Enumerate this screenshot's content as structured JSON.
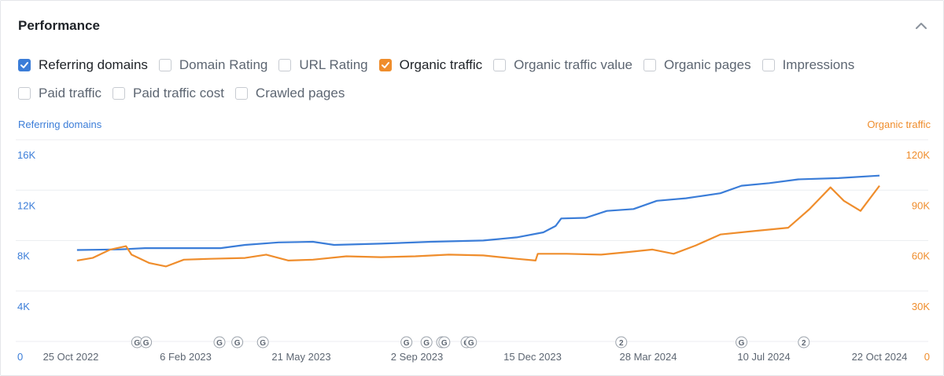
{
  "panel": {
    "title": "Performance",
    "collapse_icon": "chevron-up-icon"
  },
  "metrics": [
    {
      "label": "Referring domains",
      "checked": true,
      "color": "#3b7dd8"
    },
    {
      "label": "Domain Rating",
      "checked": false
    },
    {
      "label": "URL Rating",
      "checked": false
    },
    {
      "label": "Organic traffic",
      "checked": true,
      "color": "#ef8d2c"
    },
    {
      "label": "Organic traffic value",
      "checked": false
    },
    {
      "label": "Organic pages",
      "checked": false
    },
    {
      "label": "Impressions",
      "checked": false
    },
    {
      "label": "Paid traffic",
      "checked": false
    },
    {
      "label": "Paid traffic cost",
      "checked": false
    },
    {
      "label": "Crawled pages",
      "checked": false
    }
  ],
  "chart_data": {
    "type": "line",
    "left_axis": {
      "title": "Referring domains",
      "ticks": [
        "0",
        "4K",
        "8K",
        "12K",
        "16K"
      ],
      "range": [
        0,
        16000
      ]
    },
    "right_axis": {
      "title": "Organic traffic",
      "ticks": [
        "0",
        "30K",
        "60K",
        "90K",
        "120K"
      ],
      "range": [
        0,
        120000
      ]
    },
    "x_range": [
      "2022-10-25",
      "2024-10-22"
    ],
    "x_ticks": [
      "25 Oct 2022",
      "6 Feb 2023",
      "21 May 2023",
      "2 Sep 2023",
      "15 Dec 2023",
      "28 Mar 2024",
      "10 Jul 2024",
      "22 Oct 2024"
    ],
    "grid": true,
    "series": [
      {
        "name": "Referring domains",
        "axis": "left",
        "color": "#3b7dd8",
        "points": [
          [
            "2022-11-01",
            8500
          ],
          [
            "2022-12-10",
            8550
          ],
          [
            "2023-01-01",
            8650
          ],
          [
            "2023-02-01",
            8650
          ],
          [
            "2023-03-10",
            8650
          ],
          [
            "2023-04-01",
            8900
          ],
          [
            "2023-05-01",
            9100
          ],
          [
            "2023-06-01",
            9150
          ],
          [
            "2023-06-20",
            8900
          ],
          [
            "2023-08-01",
            9000
          ],
          [
            "2023-09-15",
            9150
          ],
          [
            "2023-11-01",
            9250
          ],
          [
            "2023-12-01",
            9500
          ],
          [
            "2023-12-25",
            9900
          ],
          [
            "2024-01-05",
            10400
          ],
          [
            "2024-01-10",
            11000
          ],
          [
            "2024-02-01",
            11050
          ],
          [
            "2024-02-20",
            11600
          ],
          [
            "2024-03-15",
            11750
          ],
          [
            "2024-04-05",
            12400
          ],
          [
            "2024-05-01",
            12600
          ],
          [
            "2024-06-01",
            13000
          ],
          [
            "2024-06-20",
            13600
          ],
          [
            "2024-07-15",
            13800
          ],
          [
            "2024-08-10",
            14100
          ],
          [
            "2024-09-15",
            14200
          ],
          [
            "2024-10-22",
            14400
          ]
        ]
      },
      {
        "name": "Organic traffic",
        "axis": "right",
        "color": "#ef8d2c",
        "points": [
          [
            "2022-11-01",
            57500
          ],
          [
            "2022-11-15",
            59000
          ],
          [
            "2022-12-01",
            64000
          ],
          [
            "2022-12-15",
            66000
          ],
          [
            "2022-12-20",
            61000
          ],
          [
            "2023-01-05",
            56000
          ],
          [
            "2023-01-20",
            54000
          ],
          [
            "2023-02-05",
            58000
          ],
          [
            "2023-03-01",
            58500
          ],
          [
            "2023-04-01",
            59000
          ],
          [
            "2023-04-20",
            61000
          ],
          [
            "2023-05-10",
            57500
          ],
          [
            "2023-06-01",
            58000
          ],
          [
            "2023-07-01",
            60000
          ],
          [
            "2023-08-01",
            59500
          ],
          [
            "2023-09-01",
            60000
          ],
          [
            "2023-10-01",
            61000
          ],
          [
            "2023-11-01",
            60500
          ],
          [
            "2023-12-01",
            58500
          ],
          [
            "2023-12-18",
            57500
          ],
          [
            "2023-12-20",
            61500
          ],
          [
            "2024-01-15",
            61500
          ],
          [
            "2024-02-15",
            61000
          ],
          [
            "2024-03-10",
            62500
          ],
          [
            "2024-04-01",
            64000
          ],
          [
            "2024-04-20",
            61500
          ],
          [
            "2024-05-10",
            66500
          ],
          [
            "2024-06-01",
            73000
          ],
          [
            "2024-07-01",
            75000
          ],
          [
            "2024-08-01",
            77000
          ],
          [
            "2024-08-20",
            88000
          ],
          [
            "2024-09-08",
            101000
          ],
          [
            "2024-09-20",
            93000
          ],
          [
            "2024-10-05",
            87000
          ],
          [
            "2024-10-22",
            102000
          ]
        ]
      }
    ],
    "annotations": [
      {
        "date": "2022-12-25",
        "label": "G"
      },
      {
        "date": "2023-01-02",
        "label": "G"
      },
      {
        "date": "2023-03-09",
        "label": "G"
      },
      {
        "date": "2023-03-25",
        "label": "G"
      },
      {
        "date": "2023-04-17",
        "label": "G"
      },
      {
        "date": "2023-08-24",
        "label": "G"
      },
      {
        "date": "2023-09-11",
        "label": "G"
      },
      {
        "date": "2023-09-25",
        "label": "G"
      },
      {
        "date": "2023-09-27",
        "label": "G"
      },
      {
        "date": "2023-10-17",
        "label": "G"
      },
      {
        "date": "2023-10-21",
        "label": "G"
      },
      {
        "date": "2024-03-04",
        "label": "2"
      },
      {
        "date": "2024-06-20",
        "label": "G"
      },
      {
        "date": "2024-08-15",
        "label": "2"
      }
    ]
  }
}
